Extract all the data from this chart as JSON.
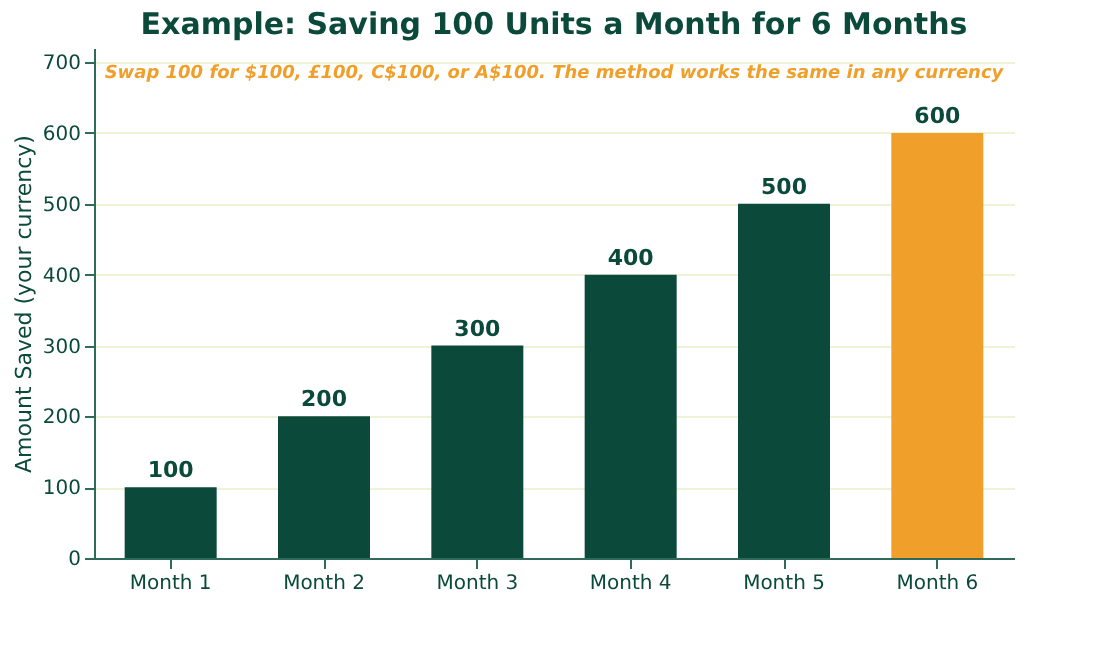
{
  "chart_data": {
    "type": "bar",
    "title": "Example: Saving 100 Units a Month for 6 Months",
    "ylabel": "Amount Saved (your currency)",
    "categories": [
      "Month 1",
      "Month 2",
      "Month 3",
      "Month 4",
      "Month 5",
      "Month 6"
    ],
    "values": [
      100,
      200,
      300,
      400,
      500,
      600
    ],
    "colors": [
      "#0b4a3a",
      "#0b4a3a",
      "#0b4a3a",
      "#0b4a3a",
      "#0b4a3a",
      "#f0a02a"
    ],
    "ylim": [
      0,
      720
    ],
    "yticks": [
      0,
      100,
      200,
      300,
      400,
      500,
      600,
      700
    ],
    "grid": "y",
    "data_labels": true,
    "annotations": [
      "Swap 100 for $100, £100, C$100, or A$100. The method works the same in any currency"
    ]
  }
}
